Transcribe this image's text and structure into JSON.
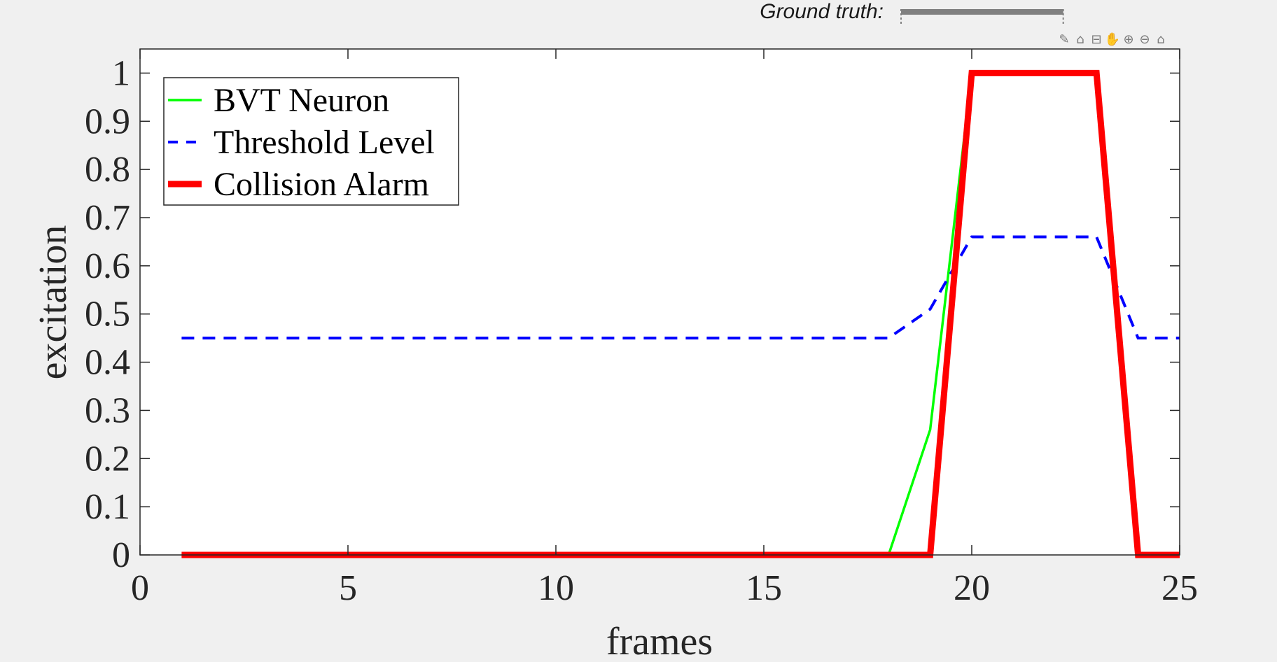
{
  "ground_truth": {
    "label": "Ground truth:",
    "x_range": [
      18.3,
      22.2
    ]
  },
  "toolbar": {
    "icons": [
      {
        "name": "edit-icon",
        "glyph": "✎"
      },
      {
        "name": "brush-icon",
        "glyph": "⌂"
      },
      {
        "name": "datatip-icon",
        "glyph": "⊟"
      },
      {
        "name": "pan-icon",
        "glyph": "✋"
      },
      {
        "name": "zoom-in-icon",
        "glyph": "⊕"
      },
      {
        "name": "zoom-out-icon",
        "glyph": "⊖"
      },
      {
        "name": "home-icon",
        "glyph": "⌂"
      }
    ]
  },
  "chart_data": {
    "type": "line",
    "title": "",
    "xlabel": "frames",
    "ylabel": "excitation",
    "xlim": [
      0,
      25
    ],
    "ylim": [
      0,
      1.05
    ],
    "xticks": [
      0,
      5,
      10,
      15,
      20,
      25
    ],
    "yticks": [
      0,
      0.1,
      0.2,
      0.3,
      0.4,
      0.5,
      0.6,
      0.7,
      0.8,
      0.9,
      1
    ],
    "grid": false,
    "legend_position": "top-left",
    "series": [
      {
        "name": "BVT Neuron",
        "color": "#00ff00",
        "style": "solid",
        "x": [
          1,
          2,
          3,
          4,
          5,
          6,
          7,
          8,
          9,
          10,
          11,
          12,
          13,
          14,
          15,
          16,
          17,
          18,
          19,
          20,
          21,
          22,
          23,
          24,
          25
        ],
        "y": [
          0,
          0,
          0,
          0,
          0,
          0,
          0,
          0,
          0,
          0,
          0,
          0,
          0,
          0,
          0,
          0,
          0,
          0,
          0.26,
          1,
          1,
          1,
          1,
          0,
          0
        ]
      },
      {
        "name": "Threshold Level",
        "color": "#0000ff",
        "style": "dashed",
        "x": [
          1,
          2,
          3,
          4,
          5,
          6,
          7,
          8,
          9,
          10,
          11,
          12,
          13,
          14,
          15,
          16,
          17,
          18,
          19,
          20,
          21,
          22,
          23,
          24,
          25
        ],
        "y": [
          0.45,
          0.45,
          0.45,
          0.45,
          0.45,
          0.45,
          0.45,
          0.45,
          0.45,
          0.45,
          0.45,
          0.45,
          0.45,
          0.45,
          0.45,
          0.45,
          0.45,
          0.45,
          0.51,
          0.66,
          0.66,
          0.66,
          0.66,
          0.45,
          0.45
        ]
      },
      {
        "name": "Collision Alarm",
        "color": "#ff0000",
        "style": "thick",
        "x": [
          1,
          2,
          3,
          4,
          5,
          6,
          7,
          8,
          9,
          10,
          11,
          12,
          13,
          14,
          15,
          16,
          17,
          18,
          19,
          20,
          21,
          22,
          23,
          24,
          25
        ],
        "y": [
          0,
          0,
          0,
          0,
          0,
          0,
          0,
          0,
          0,
          0,
          0,
          0,
          0,
          0,
          0,
          0,
          0,
          0,
          0,
          1,
          1,
          1,
          1,
          0,
          0
        ]
      }
    ]
  }
}
